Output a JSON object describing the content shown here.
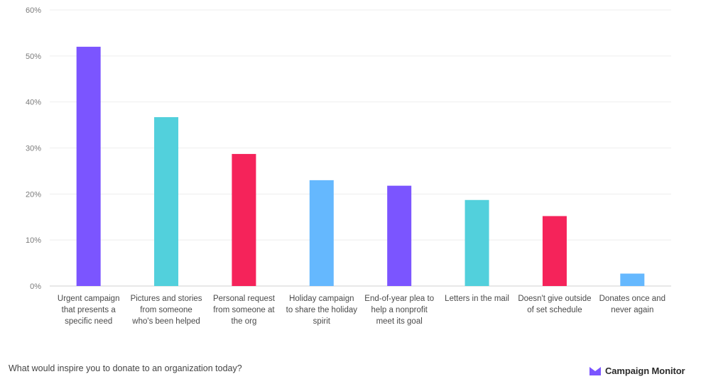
{
  "chart_data": {
    "type": "bar",
    "categories": [
      "Urgent campaign that presents a specific need",
      "Pictures and stories from someone who's been helped",
      "Personal request from someone at the org",
      "Holiday campaign to share the holiday spirit",
      "End-of-year plea to help a nonprofit meet its goal",
      "Letters in the mail",
      "Doesn't give outside of set schedule",
      "Donates once and never again"
    ],
    "category_lines": [
      [
        "Urgent campaign",
        "that presents a",
        "specific need"
      ],
      [
        "Pictures and stories",
        "from someone",
        "who's been helped"
      ],
      [
        "Personal request",
        "from someone at",
        "the org"
      ],
      [
        "Holiday campaign",
        "to share the holiday",
        "spirit"
      ],
      [
        "End-of-year plea to",
        "help a nonprofit",
        "meet its goal"
      ],
      [
        "Letters in the mail"
      ],
      [
        "Doesn't give outside",
        "of set schedule"
      ],
      [
        "Donates once and",
        "never again"
      ]
    ],
    "values": [
      52,
      36.7,
      28.7,
      23,
      21.8,
      18.7,
      15.2,
      2.7
    ],
    "colors": [
      "#7b55ff",
      "#52d0dc",
      "#f5235a",
      "#65b8fe",
      "#7b55ff",
      "#52d0dc",
      "#f5235a",
      "#65b8fe"
    ],
    "yticks": [
      "0%",
      "10%",
      "20%",
      "30%",
      "40%",
      "50%",
      "60%"
    ],
    "ylim": [
      0,
      60
    ],
    "grid": true,
    "title": "",
    "xlabel": "",
    "ylabel": ""
  },
  "footer": {
    "question": "What would inspire you to donate to an organization today?",
    "brand": "Campaign Monitor"
  },
  "colors": {
    "grid": "#eeeeee",
    "axis": "#d0d0d0",
    "brand_mark": "#7b55ff"
  },
  "icons": {
    "brand_logo": "campaign-monitor-logo-icon"
  }
}
